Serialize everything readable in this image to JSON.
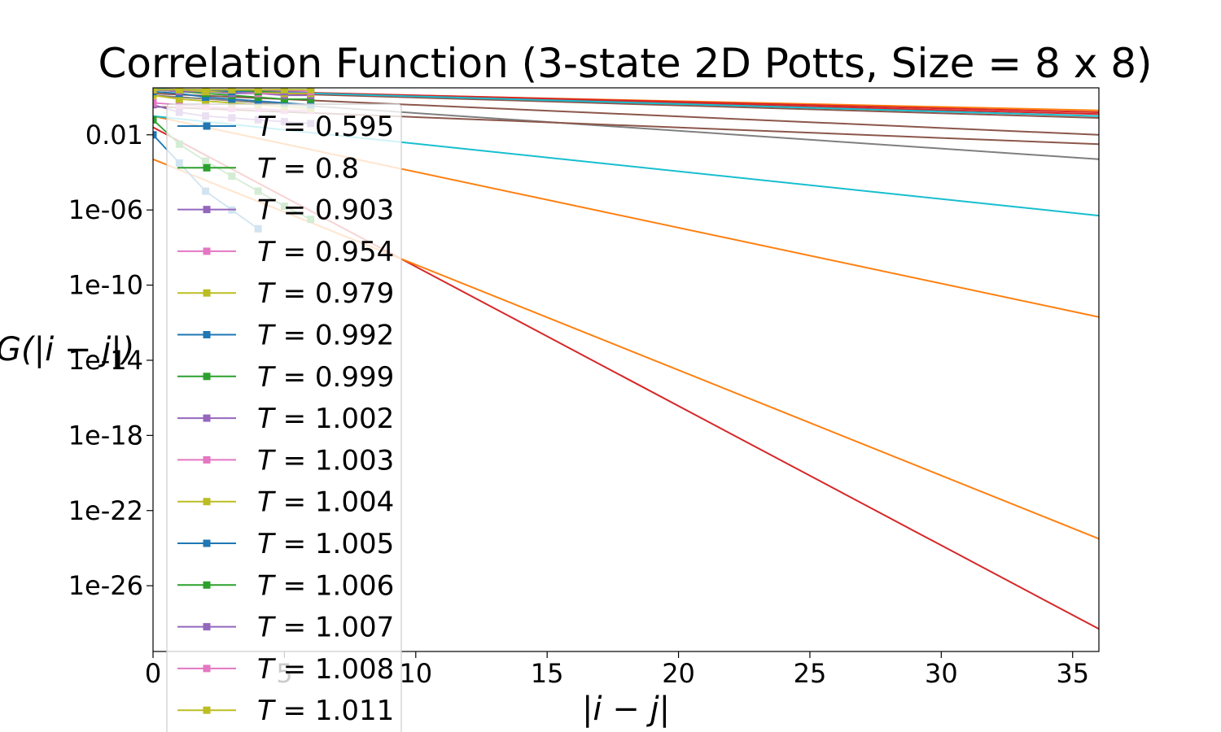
{
  "chart_data": {
    "type": "line",
    "title": "Correlation Function (3-state 2D Potts, Size = 8 x 8)",
    "xlabel": "|i − j|",
    "ylabel": "G(|i − j|)",
    "x_scale": "linear",
    "y_scale": "log",
    "xlim": [
      0,
      36
    ],
    "ylim_log10": [
      -29.5,
      0.5
    ],
    "x_ticks": [
      0,
      5,
      10,
      15,
      20,
      25,
      30,
      35
    ],
    "y_ticks": [
      {
        "label": "0.01",
        "log10": -2
      },
      {
        "label": "1e-06",
        "log10": -6
      },
      {
        "label": "1e-10",
        "log10": -10
      },
      {
        "label": "1e-14",
        "log10": -14
      },
      {
        "label": "1e-18",
        "log10": -18
      },
      {
        "label": "1e-22",
        "log10": -22
      },
      {
        "label": "1e-26",
        "log10": -26
      }
    ],
    "legend": {
      "placement": "upper-left (overflowing below axes)",
      "entries": [
        {
          "T": "0.595",
          "color": "#1f77b4"
        },
        {
          "T": "0.8",
          "color": "#2ca02c"
        },
        {
          "T": "0.903",
          "color": "#9467bd"
        },
        {
          "T": "0.954",
          "color": "#e377c2"
        },
        {
          "T": "0.979",
          "color": "#bcbd22"
        },
        {
          "T": "0.992",
          "color": "#1f77b4"
        },
        {
          "T": "0.999",
          "color": "#2ca02c"
        },
        {
          "T": "1.002",
          "color": "#9467bd"
        },
        {
          "T": "1.003",
          "color": "#e377c2"
        },
        {
          "T": "1.004",
          "color": "#bcbd22"
        },
        {
          "T": "1.005",
          "color": "#1f77b4"
        },
        {
          "T": "1.006",
          "color": "#2ca02c"
        },
        {
          "T": "1.007",
          "color": "#9467bd"
        },
        {
          "T": "1.008",
          "color": "#e377c2"
        },
        {
          "T": "1.011",
          "color": "#bcbd22"
        }
      ]
    },
    "marker_series": [
      {
        "color": "#1f77b4",
        "x": [
          0,
          1,
          2,
          3,
          4
        ],
        "log10_y": [
          -2.0,
          -3.5,
          -5.0,
          -6.0,
          -7.0
        ]
      },
      {
        "color": "#2ca02c",
        "x": [
          0,
          1,
          2,
          3,
          4,
          5,
          6
        ],
        "log10_y": [
          -1.2,
          -2.5,
          -3.4,
          -4.2,
          -5.0,
          -5.8,
          -6.5
        ]
      },
      {
        "color": "#9467bd",
        "x": [
          0,
          1,
          2,
          3,
          4,
          5,
          6
        ],
        "log10_y": [
          -0.4,
          -0.8,
          -1.0,
          -1.1,
          -1.2,
          -1.3,
          -1.4
        ]
      },
      {
        "color": "#e377c2",
        "x": [
          0,
          1,
          2,
          3,
          4,
          5,
          6
        ],
        "log10_y": [
          -0.3,
          -0.4,
          -0.5,
          -0.6,
          -0.6,
          -0.7,
          -0.7
        ]
      },
      {
        "color": "#bcbd22",
        "x": [
          0,
          1,
          2,
          3,
          4,
          5,
          6
        ],
        "log10_y": [
          0.1,
          -0.1,
          -0.2,
          -0.3,
          -0.4,
          -0.5,
          -0.6
        ]
      },
      {
        "color": "#1f77b4",
        "x": [
          0,
          1,
          2,
          3,
          4,
          5,
          6
        ],
        "log10_y": [
          0.3,
          0.2,
          0.0,
          -0.1,
          -0.2,
          -0.3,
          -0.4
        ]
      },
      {
        "color": "#2ca02c",
        "x": [
          0,
          1,
          2,
          3,
          4,
          5,
          6
        ],
        "log10_y": [
          0.4,
          0.3,
          0.2,
          0.1,
          0.0,
          -0.1,
          -0.1
        ]
      },
      {
        "color": "#9467bd",
        "x": [
          0,
          1,
          2,
          3,
          4,
          5,
          6
        ],
        "log10_y": [
          0.4,
          0.3,
          0.3,
          0.2,
          0.2,
          0.1,
          0.1
        ]
      },
      {
        "color": "#e377c2",
        "x": [
          0,
          1,
          2,
          3,
          4,
          5,
          6
        ],
        "log10_y": [
          0.4,
          0.4,
          0.3,
          0.3,
          0.2,
          0.2,
          0.2
        ]
      },
      {
        "color": "#bcbd22",
        "x": [
          0,
          1,
          2,
          3,
          4,
          5,
          6
        ],
        "log10_y": [
          0.4,
          0.4,
          0.3,
          0.3,
          0.3,
          0.2,
          0.2
        ]
      },
      {
        "color": "#1f77b4",
        "x": [
          0,
          1,
          2,
          3,
          4,
          5,
          6
        ],
        "log10_y": [
          0.4,
          0.4,
          0.4,
          0.3,
          0.3,
          0.3,
          0.3
        ]
      },
      {
        "color": "#2ca02c",
        "x": [
          0,
          1,
          2,
          3,
          4,
          5,
          6
        ],
        "log10_y": [
          0.4,
          0.4,
          0.4,
          0.4,
          0.3,
          0.3,
          0.3
        ]
      },
      {
        "color": "#9467bd",
        "x": [
          0,
          1,
          2,
          3,
          4,
          5,
          6
        ],
        "log10_y": [
          0.4,
          0.4,
          0.4,
          0.4,
          0.4,
          0.3,
          0.3
        ]
      },
      {
        "color": "#e377c2",
        "x": [
          0,
          1,
          2,
          3,
          4,
          5,
          6
        ],
        "log10_y": [
          0.4,
          0.4,
          0.4,
          0.4,
          0.4,
          0.4,
          0.3
        ]
      },
      {
        "color": "#bcbd22",
        "x": [
          0,
          1,
          2,
          3,
          4,
          5,
          6
        ],
        "log10_y": [
          0.4,
          0.4,
          0.4,
          0.4,
          0.4,
          0.4,
          0.4
        ]
      }
    ],
    "fit_lines": [
      {
        "color": "#d62728",
        "x": [
          0,
          36
        ],
        "log10_y": [
          -1.6,
          -28.3
        ]
      },
      {
        "color": "#ff7f0e",
        "x": [
          0,
          36
        ],
        "log10_y": [
          -3.3,
          -23.5
        ]
      },
      {
        "color": "#ff7f0e",
        "x": [
          0,
          36
        ],
        "log10_y": [
          -1.0,
          -11.7
        ]
      },
      {
        "color": "#17becf",
        "x": [
          0,
          36
        ],
        "log10_y": [
          -1.0,
          -6.3
        ]
      },
      {
        "color": "#7f7f7f",
        "x": [
          0,
          36
        ],
        "log10_y": [
          0.1,
          -3.3
        ]
      },
      {
        "color": "#8c564b",
        "x": [
          0,
          36
        ],
        "log10_y": [
          -0.5,
          -2.5
        ]
      },
      {
        "color": "#8c564b",
        "x": [
          0,
          36
        ],
        "log10_y": [
          0.2,
          -2.0
        ]
      },
      {
        "color": "#8c564b",
        "x": [
          0,
          36
        ],
        "log10_y": [
          0.4,
          -1.1
        ]
      },
      {
        "color": "#d62728",
        "x": [
          0,
          36
        ],
        "log10_y": [
          0.4,
          -0.9
        ]
      },
      {
        "color": "#ff7f0e",
        "x": [
          0,
          36
        ],
        "log10_y": [
          0.4,
          -0.7
        ]
      },
      {
        "color": "#d62728",
        "x": [
          0,
          36
        ],
        "log10_y": [
          0.45,
          -0.8
        ]
      },
      {
        "color": "#17becf",
        "x": [
          0,
          36
        ],
        "log10_y": [
          0.45,
          -1.0
        ]
      }
    ]
  }
}
